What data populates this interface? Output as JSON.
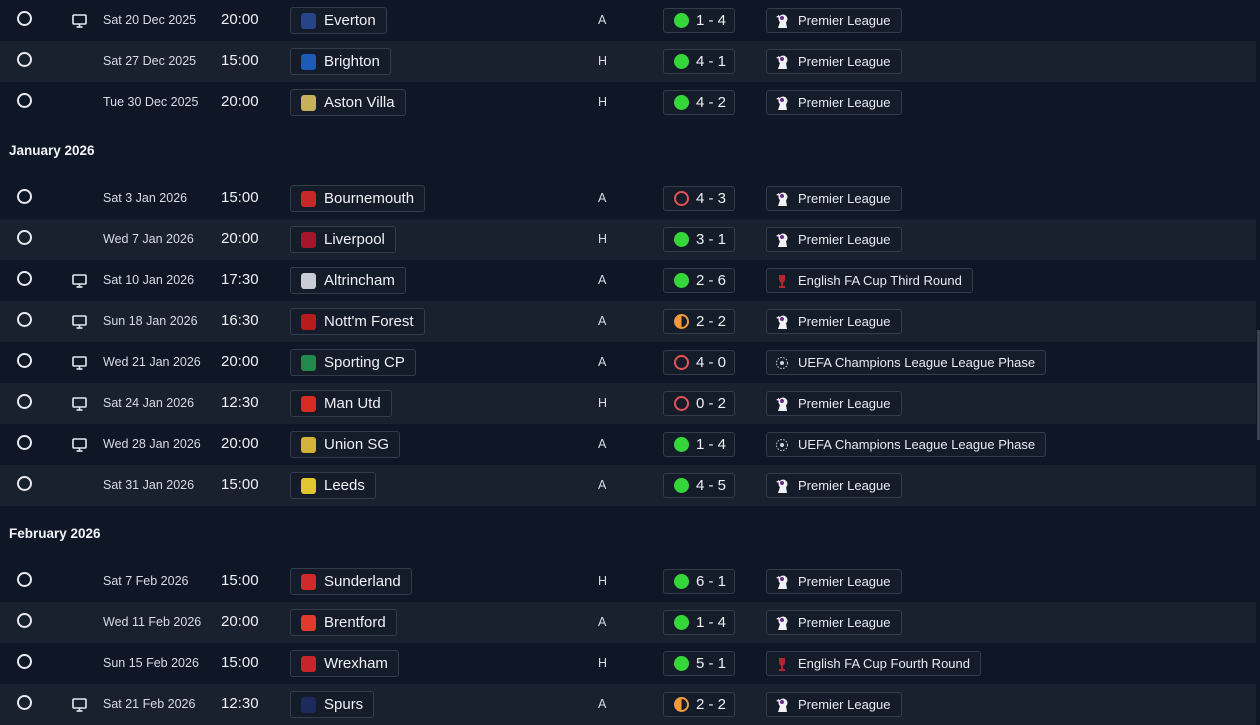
{
  "colors": {
    "win": "#35d63a",
    "loss": "#e45454",
    "draw": "#f29a3d",
    "row_alt": "#19202e",
    "background": "#0f1625"
  },
  "sections": [
    {
      "month": "",
      "fixtures": [
        {
          "tv": true,
          "date": "Sat 20 Dec 2025",
          "time": "20:00",
          "opponent": "Everton",
          "crest_color": "#274488",
          "venue": "A",
          "outcome": "win",
          "score": "1 - 4",
          "competition": "Premier League",
          "comp_icon": "premier-league-icon"
        },
        {
          "tv": false,
          "date": "Sat 27 Dec 2025",
          "time": "15:00",
          "opponent": "Brighton",
          "crest_color": "#1d5bb8",
          "venue": "H",
          "outcome": "win",
          "score": "4 - 1",
          "competition": "Premier League",
          "comp_icon": "premier-league-icon"
        },
        {
          "tv": false,
          "date": "Tue 30 Dec 2025",
          "time": "20:00",
          "opponent": "Aston Villa",
          "crest_color": "#c6b15a",
          "venue": "H",
          "outcome": "win",
          "score": "4 - 2",
          "competition": "Premier League",
          "comp_icon": "premier-league-icon"
        }
      ]
    },
    {
      "month": "January 2026",
      "fixtures": [
        {
          "tv": false,
          "date": "Sat 3 Jan 2026",
          "time": "15:00",
          "opponent": "Bournemouth",
          "crest_color": "#c62828",
          "venue": "A",
          "outcome": "loss",
          "score": "4 - 3",
          "competition": "Premier League",
          "comp_icon": "premier-league-icon"
        },
        {
          "tv": false,
          "date": "Wed 7 Jan 2026",
          "time": "20:00",
          "opponent": "Liverpool",
          "crest_color": "#a3152a",
          "venue": "H",
          "outcome": "win",
          "score": "3 - 1",
          "competition": "Premier League",
          "comp_icon": "premier-league-icon"
        },
        {
          "tv": true,
          "date": "Sat 10 Jan 2026",
          "time": "17:30",
          "opponent": "Altrincham",
          "crest_color": "#c9ccd4",
          "venue": "A",
          "outcome": "win",
          "score": "2 - 6",
          "competition": "English FA Cup Third Round",
          "comp_icon": "fa-cup-icon"
        },
        {
          "tv": true,
          "date": "Sun 18 Jan 2026",
          "time": "16:30",
          "opponent": "Nott'm Forest",
          "crest_color": "#b71c1c",
          "venue": "A",
          "outcome": "draw",
          "score": "2 - 2",
          "competition": "Premier League",
          "comp_icon": "premier-league-icon"
        },
        {
          "tv": true,
          "date": "Wed 21 Jan 2026",
          "time": "20:00",
          "opponent": "Sporting CP",
          "crest_color": "#1f8a4c",
          "venue": "A",
          "outcome": "loss",
          "score": "4 - 0",
          "competition": "UEFA Champions League League Phase",
          "comp_icon": "champions-league-icon"
        },
        {
          "tv": true,
          "date": "Sat 24 Jan 2026",
          "time": "12:30",
          "opponent": "Man Utd",
          "crest_color": "#d62b1f",
          "venue": "H",
          "outcome": "loss",
          "score": "0 - 2",
          "competition": "Premier League",
          "comp_icon": "premier-league-icon"
        },
        {
          "tv": true,
          "date": "Wed 28 Jan 2026",
          "time": "20:00",
          "opponent": "Union SG",
          "crest_color": "#d4b23a",
          "venue": "A",
          "outcome": "win",
          "score": "1 - 4",
          "competition": "UEFA Champions League League Phase",
          "comp_icon": "champions-league-icon"
        },
        {
          "tv": false,
          "date": "Sat 31 Jan 2026",
          "time": "15:00",
          "opponent": "Leeds",
          "crest_color": "#e3c531",
          "venue": "A",
          "outcome": "win",
          "score": "4 - 5",
          "competition": "Premier League",
          "comp_icon": "premier-league-icon"
        }
      ]
    },
    {
      "month": "February 2026",
      "fixtures": [
        {
          "tv": false,
          "date": "Sat 7 Feb 2026",
          "time": "15:00",
          "opponent": "Sunderland",
          "crest_color": "#d12a2a",
          "venue": "H",
          "outcome": "win",
          "score": "6 - 1",
          "competition": "Premier League",
          "comp_icon": "premier-league-icon"
        },
        {
          "tv": false,
          "date": "Wed 11 Feb 2026",
          "time": "20:00",
          "opponent": "Brentford",
          "crest_color": "#e03a2c",
          "venue": "A",
          "outcome": "win",
          "score": "1 - 4",
          "competition": "Premier League",
          "comp_icon": "premier-league-icon"
        },
        {
          "tv": false,
          "date": "Sun 15 Feb 2026",
          "time": "15:00",
          "opponent": "Wrexham",
          "crest_color": "#c8242c",
          "venue": "H",
          "outcome": "win",
          "score": "5 - 1",
          "competition": "English FA Cup Fourth Round",
          "comp_icon": "fa-cup-icon"
        },
        {
          "tv": true,
          "date": "Sat 21 Feb 2026",
          "time": "12:30",
          "opponent": "Spurs",
          "crest_color": "#1c2a5c",
          "venue": "A",
          "outcome": "draw",
          "score": "2 - 2",
          "competition": "Premier League",
          "comp_icon": "premier-league-icon"
        }
      ]
    }
  ]
}
